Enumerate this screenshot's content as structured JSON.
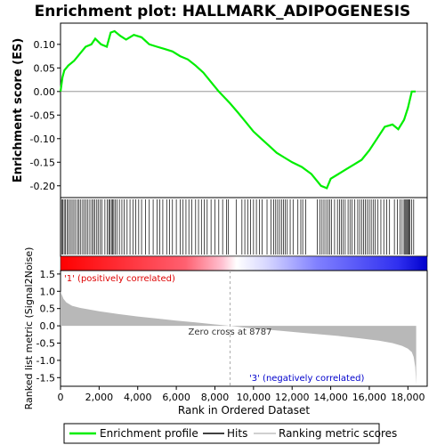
{
  "chart_data": {
    "type": "line",
    "title": "Enrichment plot: HALLMARK_ADIPOGENESIS",
    "x_axis": {
      "label": "Rank in Ordered Dataset",
      "range": [
        0,
        19000
      ],
      "ticks": [
        0,
        2000,
        4000,
        6000,
        8000,
        10000,
        12000,
        14000,
        16000,
        18000
      ],
      "tick_labels": [
        "0",
        "2,000",
        "4,000",
        "6,000",
        "8,000",
        "10,000",
        "12,000",
        "14,000",
        "16,000",
        "18,000"
      ]
    },
    "es_panel": {
      "ylabel": "Enrichment score (ES)",
      "ylim": [
        -0.225,
        0.145
      ],
      "yticks": [
        -0.2,
        -0.15,
        -0.1,
        -0.05,
        0.0,
        0.05,
        0.1
      ],
      "ytick_labels": [
        "-0.20",
        "-0.15",
        "-0.10",
        "-0.05",
        "0.00",
        "0.05",
        "0.10"
      ],
      "series": [
        {
          "name": "Enrichment profile",
          "color": "#00ee00",
          "x": [
            0,
            100,
            200,
            400,
            700,
            1000,
            1300,
            1600,
            1800,
            2100,
            2400,
            2600,
            2800,
            3100,
            3400,
            3800,
            4200,
            4600,
            5000,
            5400,
            5800,
            6200,
            6600,
            7000,
            7400,
            7800,
            8200,
            8787,
            9200,
            9600,
            10000,
            10400,
            10800,
            11200,
            11600,
            12000,
            12500,
            13000,
            13500,
            13800,
            14000,
            14400,
            14800,
            15200,
            15600,
            16000,
            16400,
            16800,
            17200,
            17500,
            17800,
            18000,
            18200,
            18400
          ],
          "y": [
            0.0,
            0.03,
            0.045,
            0.055,
            0.065,
            0.08,
            0.095,
            0.1,
            0.112,
            0.1,
            0.095,
            0.125,
            0.128,
            0.118,
            0.11,
            0.12,
            0.115,
            0.1,
            0.095,
            0.09,
            0.085,
            0.075,
            0.068,
            0.055,
            0.04,
            0.02,
            0.0,
            -0.025,
            -0.045,
            -0.065,
            -0.085,
            -0.1,
            -0.115,
            -0.13,
            -0.14,
            -0.15,
            -0.16,
            -0.175,
            -0.2,
            -0.205,
            -0.185,
            -0.175,
            -0.165,
            -0.155,
            -0.145,
            -0.125,
            -0.1,
            -0.075,
            -0.07,
            -0.08,
            -0.06,
            -0.035,
            0.0,
            0.0
          ]
        }
      ]
    },
    "hits": {
      "name": "Hits",
      "positions": [
        60,
        120,
        190,
        260,
        340,
        420,
        510,
        600,
        690,
        780,
        880,
        960,
        1050,
        1150,
        1240,
        1330,
        1420,
        1520,
        1620,
        1700,
        1780,
        1880,
        1950,
        2050,
        2150,
        2300,
        2420,
        2500,
        2560,
        2640,
        2700,
        2760,
        2840,
        2920,
        3050,
        3180,
        3300,
        3450,
        3600,
        3750,
        3900,
        4050,
        4200,
        4400,
        4600,
        4800,
        5000,
        5150,
        5300,
        5500,
        5650,
        5800,
        6000,
        6200,
        6350,
        6500,
        6650,
        6800,
        7000,
        7150,
        7300,
        7450,
        7600,
        7800,
        8000,
        8200,
        8400,
        8600,
        8700,
        9100,
        9400,
        9550,
        9700,
        9850,
        10000,
        10150,
        10300,
        10450,
        10700,
        10900,
        11050,
        11150,
        11250,
        11350,
        11450,
        11550,
        11650,
        11750,
        11900,
        12050,
        12300,
        12450,
        12550,
        12700,
        13300,
        13450,
        13550,
        13650,
        13750,
        13850,
        13950,
        14050,
        14200,
        14350,
        14450,
        14550,
        14650,
        14750,
        14900,
        15000,
        15100,
        15250,
        15400,
        15500,
        15600,
        15700,
        15800,
        15900,
        16000,
        16100,
        16200,
        16300,
        16450,
        16600,
        16750,
        16900,
        17050,
        17300,
        17450,
        17600,
        17700,
        17800,
        17850,
        17900,
        17950,
        18000,
        18050,
        18100,
        18200,
        18300
      ]
    },
    "rank_panel": {
      "ylabel": "Ranked list metric (Signal2Noise)",
      "ylim": [
        -1.75,
        1.6
      ],
      "yticks": [
        -1.5,
        -1.0,
        -0.5,
        0.0,
        0.5,
        1.0,
        1.5
      ],
      "ytick_labels": [
        "-1.5",
        "-1.0",
        "-0.5",
        "0.0",
        "0.5",
        "1.0",
        "1.5"
      ],
      "metric_x": [
        0,
        50,
        150,
        300,
        600,
        1000,
        2000,
        3000,
        4000,
        5000,
        6000,
        7000,
        8000,
        8787,
        9500,
        10500,
        11500,
        12500,
        13500,
        14500,
        15500,
        16500,
        17200,
        17700,
        18000,
        18200,
        18300,
        18380,
        18430
      ],
      "metric_y": [
        1.0,
        0.92,
        0.78,
        0.68,
        0.58,
        0.52,
        0.42,
        0.34,
        0.27,
        0.21,
        0.15,
        0.1,
        0.04,
        0.0,
        -0.05,
        -0.1,
        -0.15,
        -0.2,
        -0.25,
        -0.3,
        -0.36,
        -0.43,
        -0.5,
        -0.58,
        -0.66,
        -0.76,
        -0.9,
        -1.2,
        -1.7
      ],
      "zero_cross_label": "Zero cross at 8787",
      "zero_cross_x": 8787,
      "positive_label": "'1' (positively correlated)",
      "negative_label": "'3' (negatively correlated)"
    },
    "gradient_bar": {
      "colors": [
        "#ff0000",
        "#ffb0c0",
        "#ffffff",
        "#b0b0ff",
        "#0000dd"
      ]
    },
    "legend": [
      {
        "name": "Enrichment profile",
        "color": "#00ee00"
      },
      {
        "name": "Hits",
        "color": "#000000"
      },
      {
        "name": "Ranking metric scores",
        "color": "#c0c0c0"
      }
    ],
    "max_rank": 18430
  }
}
